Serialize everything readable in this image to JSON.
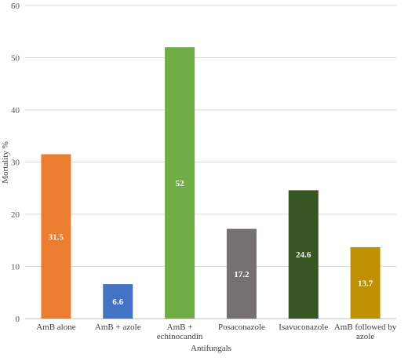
{
  "chart_data": {
    "type": "bar",
    "title": "",
    "xlabel": "Antifungals",
    "ylabel": "Mortality %",
    "ylim": [
      0,
      60
    ],
    "yticks": [
      0,
      10,
      20,
      30,
      40,
      50,
      60
    ],
    "grid": true,
    "legend": "none",
    "categories": [
      [
        "AmB alone"
      ],
      [
        "AmB + azole"
      ],
      [
        "AmB +",
        "echinocandin"
      ],
      [
        "Posaconazole"
      ],
      [
        "Isavuconazole"
      ],
      [
        "AmB followed by",
        "azole"
      ]
    ],
    "values": [
      31.5,
      6.6,
      52,
      17.2,
      24.6,
      13.7
    ],
    "data_labels": [
      "31.5",
      "6.6",
      "52",
      "17.2",
      "24.6",
      "13.7"
    ],
    "colors": [
      "#ed7d31",
      "#4472c4",
      "#70ad47",
      "#767171",
      "#375623",
      "#bf9000"
    ]
  }
}
